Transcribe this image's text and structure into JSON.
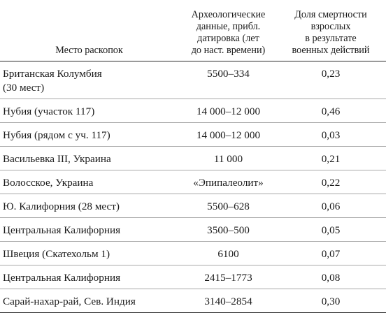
{
  "headers": {
    "place": "Место раскопок",
    "dating": "Археологические\nданные, прибл.\nдатировка (лет\nдо наст. времени)",
    "share": "Доля смертности\nвзрослых\nв результате\nвоенных действий"
  },
  "rows": [
    {
      "place": "Британская Колумбия\n(30 мест)",
      "dating": "5500–334",
      "share": "0,23"
    },
    {
      "place": "Нубия (участок 117)",
      "dating": "14 000–12 000",
      "share": "0,46"
    },
    {
      "place": "Нубия (рядом с уч. 117)",
      "dating": "14 000–12 000",
      "share": "0,03"
    },
    {
      "place": "Васильевка III, Украина",
      "dating": "11 000",
      "share": "0,21"
    },
    {
      "place": "Волосское, Украина",
      "dating": "«Эпипалеолит»",
      "share": "0,22"
    },
    {
      "place": "Ю. Калифорния (28 мест)",
      "dating": "5500–628",
      "share": "0,06"
    },
    {
      "place": "Центральная Калифорния",
      "dating": "3500–500",
      "share": "0,05"
    },
    {
      "place": "Швеция (Скатехольм 1)",
      "dating": "6100",
      "share": "0,07"
    },
    {
      "place": "Центральная Калифорния",
      "dating": "2415–1773",
      "share": "0,08"
    },
    {
      "place": "Сарай-нахар-рай, Сев. Индия",
      "dating": "3140–2854",
      "share": "0,30"
    }
  ]
}
